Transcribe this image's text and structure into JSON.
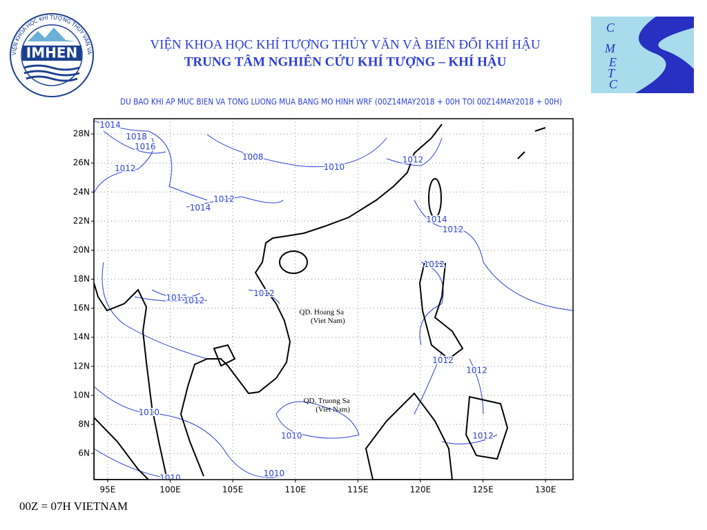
{
  "header": {
    "institute": "VIỆN KHOA HỌC KHÍ TƯỢNG THỦY VĂN VÀ BIẾN ĐỔI KHÍ HẬU",
    "center": "TRUNG TÂM NGHIÊN CỨU KHÍ TƯỢNG – KHÍ HẬU"
  },
  "logo_left": {
    "name": "IMHEN",
    "ring": "VIỆN KHOA HỌC KHÍ TƯỢNG THỦY VĂN VÀ BIẾN ĐỔI KHÍ HẬU"
  },
  "logo_right": {
    "letters": [
      "C",
      "M",
      "E",
      "T",
      "C"
    ]
  },
  "map": {
    "title": "DU BAO KHI AP MUC BIEN VA TONG LUONG MUA BANG MO HINH WRF (00Z14MAY2018 + 00H TOI 00Z14MAY2018 + 00H)",
    "xlim": [
      93.9,
      132.2
    ],
    "ylim": [
      4.2,
      29.05
    ],
    "xticks": [
      {
        "value": 95,
        "label": "95E"
      },
      {
        "value": 100,
        "label": "100E"
      },
      {
        "value": 105,
        "label": "105E"
      },
      {
        "value": 110,
        "label": "110E"
      },
      {
        "value": 115,
        "label": "115E"
      },
      {
        "value": 120,
        "label": "120E"
      },
      {
        "value": 125,
        "label": "125E"
      },
      {
        "value": 130,
        "label": "130E"
      }
    ],
    "yticks": [
      {
        "value": 6,
        "label": "6N"
      },
      {
        "value": 8,
        "label": "8N"
      },
      {
        "value": 10,
        "label": "10N"
      },
      {
        "value": 12,
        "label": "12N"
      },
      {
        "value": 14,
        "label": "14N"
      },
      {
        "value": 16,
        "label": "16N"
      },
      {
        "value": 18,
        "label": "18N"
      },
      {
        "value": 20,
        "label": "20N"
      },
      {
        "value": 22,
        "label": "22N"
      },
      {
        "value": 24,
        "label": "24N"
      },
      {
        "value": 26,
        "label": "26N"
      },
      {
        "value": 28,
        "label": "28N"
      }
    ],
    "grid": true,
    "places": [
      {
        "name": "QD. Hoang Sa",
        "lon": 112.1,
        "lat": 15.7
      },
      {
        "name": "(Viet Nam)",
        "lon": 112.6,
        "lat": 15.1
      },
      {
        "name": "QD. Truong Sa",
        "lon": 112.5,
        "lat": 9.6
      },
      {
        "name": "(Viet Nam)",
        "lon": 113.0,
        "lat": 9.0
      }
    ],
    "isobar_labels": [
      {
        "value": 1014,
        "lon": 95.2,
        "lat": 28.6
      },
      {
        "value": 1018,
        "lon": 97.3,
        "lat": 27.8
      },
      {
        "value": 1016,
        "lon": 98.0,
        "lat": 27.1
      },
      {
        "value": 1012,
        "lon": 96.4,
        "lat": 25.6
      },
      {
        "value": 1008,
        "lon": 106.6,
        "lat": 26.4
      },
      {
        "value": 1010,
        "lon": 113.1,
        "lat": 25.7
      },
      {
        "value": 1012,
        "lon": 119.4,
        "lat": 26.2
      },
      {
        "value": 1012,
        "lon": 104.3,
        "lat": 23.5
      },
      {
        "value": 1014,
        "lon": 102.4,
        "lat": 22.9
      },
      {
        "value": 1014,
        "lon": 121.3,
        "lat": 22.1
      },
      {
        "value": 1012,
        "lon": 122.6,
        "lat": 21.4
      },
      {
        "value": 1012,
        "lon": 121.1,
        "lat": 19.0
      },
      {
        "value": 1012,
        "lon": 100.5,
        "lat": 16.7
      },
      {
        "value": 1012,
        "lon": 101.9,
        "lat": 16.5
      },
      {
        "value": 1012,
        "lon": 107.5,
        "lat": 17.0
      },
      {
        "value": 1012,
        "lon": 121.8,
        "lat": 12.4
      },
      {
        "value": 1012,
        "lon": 124.5,
        "lat": 11.7
      },
      {
        "value": 1010,
        "lon": 98.3,
        "lat": 8.8
      },
      {
        "value": 1010,
        "lon": 109.7,
        "lat": 7.2
      },
      {
        "value": 1012,
        "lon": 125.0,
        "lat": 7.2
      },
      {
        "value": 1010,
        "lon": 108.3,
        "lat": 4.6
      },
      {
        "value": 1010,
        "lon": 100.0,
        "lat": 4.3
      }
    ]
  },
  "footer": "00Z = 07H VIETNAM"
}
